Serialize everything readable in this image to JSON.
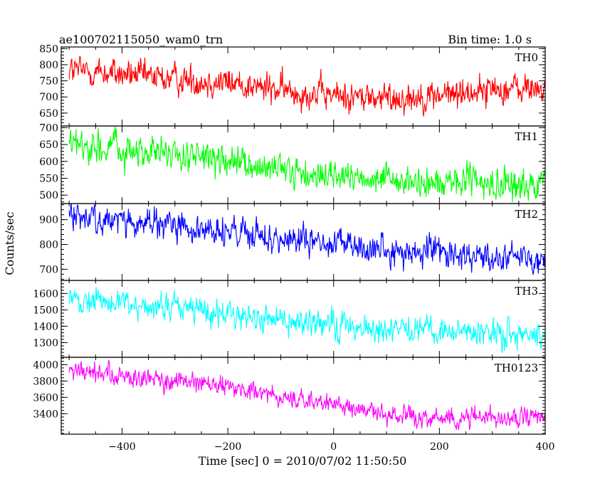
{
  "chart_data": {
    "type": "line",
    "title": "ae100702115050_wam0_trn",
    "bin_time_label": "Bin time: 1.0 s",
    "xlabel": "Time [sec] 0 = 2010/07/02 11:50:50",
    "ylabel": "Counts/sec",
    "xlim": [
      -515,
      400
    ],
    "xticks": [
      -400,
      -200,
      0,
      200,
      400
    ],
    "xtick_labels": [
      "−400",
      "−200",
      "0",
      "200",
      "400"
    ],
    "x_start": -500,
    "x_end": 400,
    "bin_seconds": 1.0,
    "panels": [
      {
        "name": "TH0",
        "color": "#ff0000",
        "ylim": [
          610,
          855
        ],
        "yticks": [
          650,
          700,
          750,
          800,
          850
        ],
        "ytick_labels": [
          "650",
          "700",
          "750",
          "800",
          "850"
        ],
        "trend": [
          [
            -500,
            785
          ],
          [
            -400,
            770
          ],
          [
            -300,
            755
          ],
          [
            -200,
            745
          ],
          [
            -100,
            720
          ],
          [
            0,
            705
          ],
          [
            100,
            695
          ],
          [
            200,
            705
          ],
          [
            300,
            725
          ],
          [
            400,
            725
          ]
        ],
        "noise_sd": 28
      },
      {
        "name": "TH1",
        "color": "#00ff00",
        "ylim": [
          475,
          705
        ],
        "yticks": [
          500,
          550,
          600,
          650,
          700
        ],
        "ytick_labels": [
          "500",
          "550",
          "600",
          "650",
          "700"
        ],
        "trend": [
          [
            -500,
            650
          ],
          [
            -400,
            635
          ],
          [
            -300,
            620
          ],
          [
            -200,
            595
          ],
          [
            -100,
            570
          ],
          [
            0,
            555
          ],
          [
            100,
            540
          ],
          [
            200,
            535
          ],
          [
            300,
            535
          ],
          [
            400,
            528
          ]
        ],
        "noise_sd": 27
      },
      {
        "name": "TH2",
        "color": "#0000ff",
        "ylim": [
          655,
          965
        ],
        "yticks": [
          700,
          800,
          900
        ],
        "ytick_labels": [
          "700",
          "800",
          "900"
        ],
        "trend": [
          [
            -500,
            915
          ],
          [
            -400,
            895
          ],
          [
            -300,
            870
          ],
          [
            -200,
            845
          ],
          [
            -100,
            820
          ],
          [
            0,
            800
          ],
          [
            100,
            780
          ],
          [
            200,
            765
          ],
          [
            300,
            755
          ],
          [
            400,
            745
          ]
        ],
        "noise_sd": 35
      },
      {
        "name": "TH3",
        "color": "#00ffff",
        "ylim": [
          1210,
          1680
        ],
        "yticks": [
          1300,
          1400,
          1500,
          1600
        ],
        "ytick_labels": [
          "1300",
          "1400",
          "1500",
          "1600"
        ],
        "trend": [
          [
            -500,
            1565
          ],
          [
            -400,
            1540
          ],
          [
            -300,
            1510
          ],
          [
            -200,
            1475
          ],
          [
            -100,
            1440
          ],
          [
            0,
            1405
          ],
          [
            100,
            1380
          ],
          [
            200,
            1365
          ],
          [
            300,
            1360
          ],
          [
            400,
            1350
          ]
        ],
        "noise_sd": 48
      },
      {
        "name": "TH0123",
        "color": "#ff00ff",
        "ylim": [
          3150,
          4090
        ],
        "yticks": [
          3400,
          3600,
          3800,
          4000
        ],
        "ytick_labels": [
          "3400",
          "3600",
          "3800",
          "4000"
        ],
        "trend": [
          [
            -500,
            3930
          ],
          [
            -400,
            3860
          ],
          [
            -300,
            3790
          ],
          [
            -200,
            3715
          ],
          [
            -100,
            3610
          ],
          [
            0,
            3500
          ],
          [
            100,
            3390
          ],
          [
            200,
            3340
          ],
          [
            300,
            3380
          ],
          [
            400,
            3320
          ]
        ],
        "noise_sd": 70
      }
    ]
  }
}
